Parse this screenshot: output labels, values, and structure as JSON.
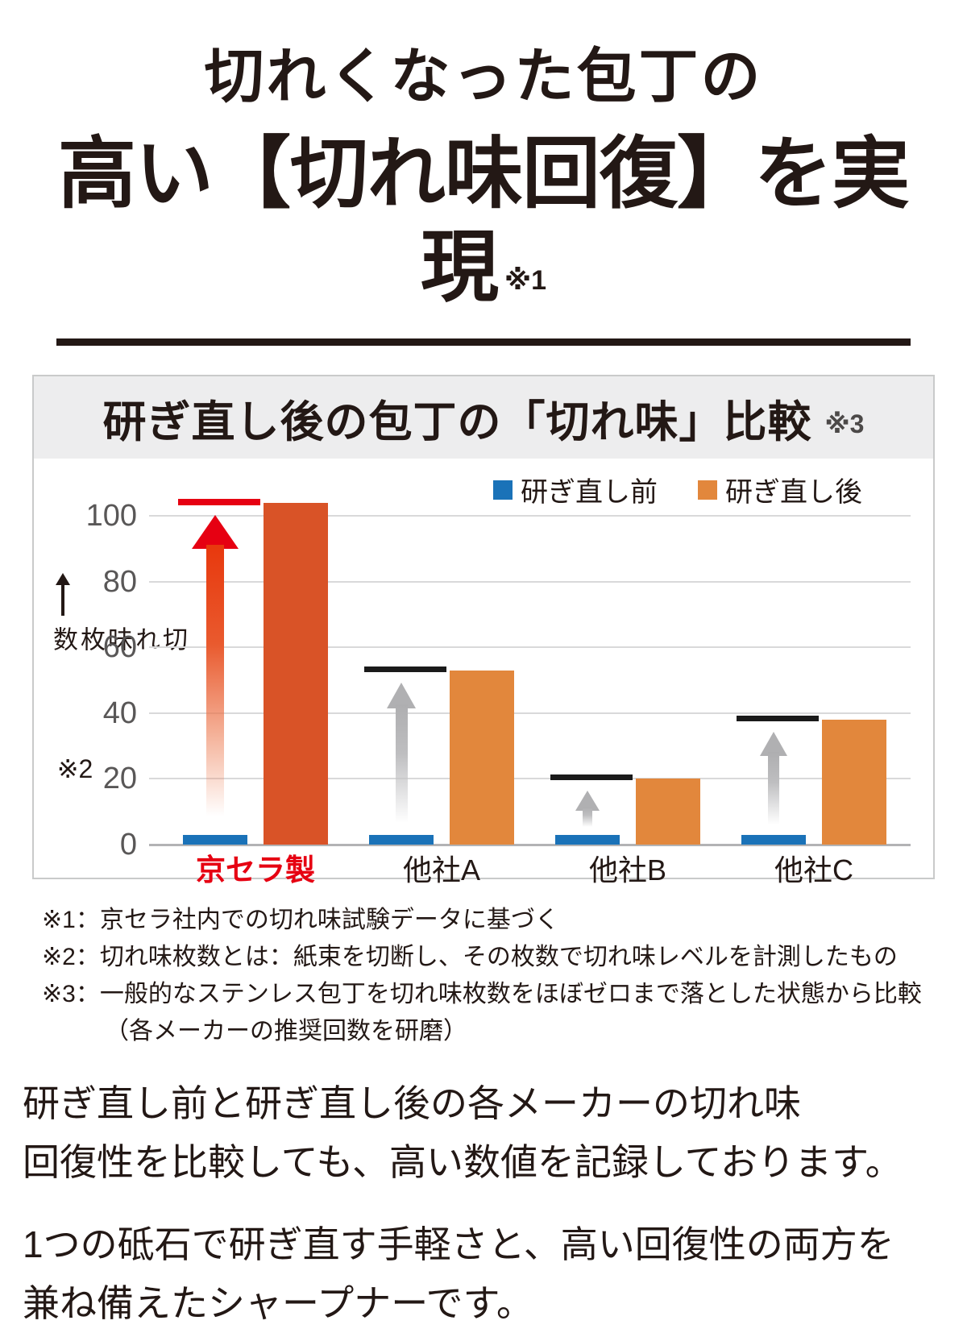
{
  "page": {
    "heading": {
      "line1": "切れくなった包丁の",
      "line2": "高い【切れ味回復】を実現",
      "note": "※1"
    },
    "chart_panel": {
      "title": "研ぎ直し後の包丁の「切れ味」比較",
      "title_note": "※3"
    },
    "footnotes": [
      "※1：京セラ社内での切れ味試験データに基づく",
      "※2：切れ味枚数とは：紙束を切断し、その枚数で切れ味レベルを計測したもの",
      "※3：一般的なステンレス包丁を切れ味枚数をほぼゼロまで落とした状態から比較",
      "（各メーカーの推奨回数を研磨）"
    ],
    "paragraphs": [
      "研ぎ直し前と研ぎ直し後の各メーカーの切れ味\n回復性を比較しても、高い数値を記録しております。",
      "1つの砥石で研ぎ直す手軽さと、高い回復性の両方を\n兼ね備えたシャープナーです。"
    ]
  },
  "chart_data": {
    "type": "bar",
    "title": "研ぎ直し後の包丁の「切れ味」比較 ※3",
    "categories": [
      "京セラ製",
      "他社A",
      "他社B",
      "他社C"
    ],
    "series": [
      {
        "name": "研ぎ直し前",
        "color": "#1a72b8",
        "values": [
          3,
          3,
          3,
          3
        ]
      },
      {
        "name": "研ぎ直し後",
        "color": "#e2873c",
        "values": [
          104,
          53,
          20,
          38
        ]
      }
    ],
    "ylabel": "切れ味枚数",
    "ylabel_note": "※2",
    "yticks": [
      0,
      20,
      40,
      60,
      80,
      100
    ],
    "ylim": [
      0,
      110
    ],
    "grid": true,
    "legend_position": "top-right",
    "highlight": {
      "category": "京セラ製",
      "after_bar_color": "#d95327",
      "label_color": "#e60012"
    },
    "decorations": {
      "marker_color_highlight": "#e60012",
      "marker_color_default": "#1a1a1a",
      "arrow_color_highlight": "#e60012",
      "arrow_color_default": "#b0b0b2"
    }
  }
}
